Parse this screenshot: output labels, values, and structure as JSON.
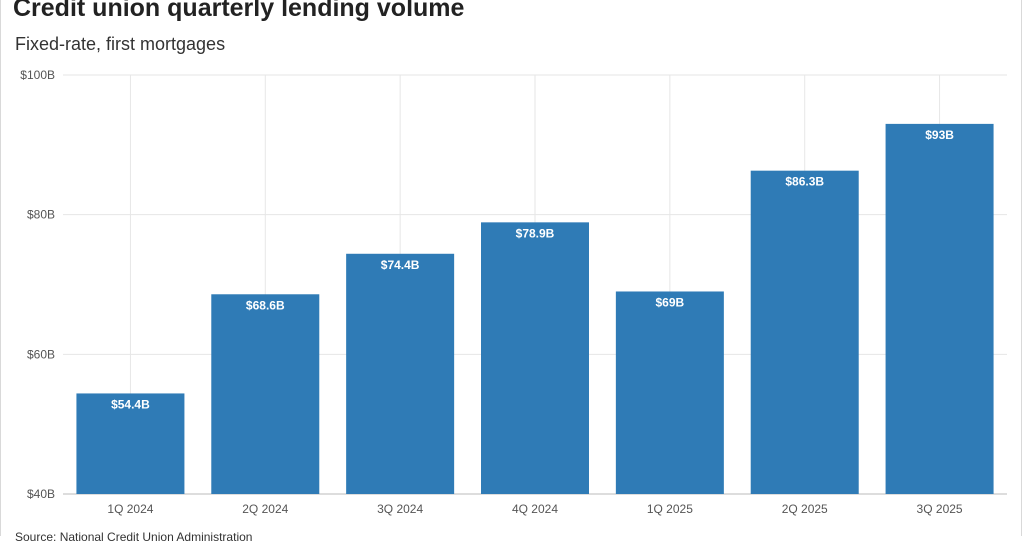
{
  "chart_data": {
    "type": "bar",
    "title": "Credit union quarterly lending volume",
    "subtitle": "Fixed-rate, first mortgages",
    "source": "Source: National Credit Union Administration",
    "categories": [
      "1Q 2024",
      "2Q 2024",
      "3Q 2024",
      "4Q 2024",
      "1Q 2025",
      "2Q 2025",
      "3Q 2025"
    ],
    "values": [
      54.4,
      68.6,
      74.4,
      78.9,
      69,
      86.3,
      93
    ],
    "value_labels": [
      "$54.4B",
      "$68.6B",
      "$74.4B",
      "$78.9B",
      "$69B",
      "$86.3B",
      "$93B"
    ],
    "ylim": [
      40,
      100
    ],
    "yticks": [
      40,
      60,
      80,
      100
    ],
    "ytick_labels": [
      "$40B",
      "$60B",
      "$80B",
      "$100B"
    ],
    "xlabel": "",
    "ylabel": "",
    "grid": true,
    "legend": "none",
    "bar_color": "#2f7bb6",
    "grid_color": "#e6e6e6"
  }
}
